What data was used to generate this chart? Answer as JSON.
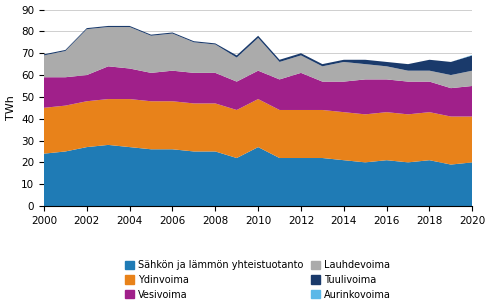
{
  "years": [
    2000,
    2001,
    2002,
    2003,
    2004,
    2005,
    2006,
    2007,
    2008,
    2009,
    2010,
    2011,
    2012,
    2013,
    2014,
    2015,
    2016,
    2017,
    2018,
    2019,
    2020
  ],
  "sahko_lampo": [
    24,
    25,
    27,
    28,
    27,
    26,
    26,
    25,
    25,
    22,
    27,
    22,
    22,
    22,
    21,
    20,
    21,
    20,
    21,
    19,
    20
  ],
  "ydinvoima": [
    21,
    21,
    21,
    21,
    22,
    22,
    22,
    22,
    22,
    22,
    22,
    22,
    22,
    22,
    22,
    22,
    22,
    22,
    22,
    22,
    21
  ],
  "vesivoima": [
    14,
    13,
    12,
    15,
    14,
    13,
    14,
    14,
    14,
    13,
    13,
    14,
    17,
    13,
    14,
    16,
    15,
    15,
    14,
    13,
    14
  ],
  "lauhdevoima": [
    10,
    12,
    21,
    18,
    19,
    17,
    17,
    14,
    13,
    11,
    15,
    8,
    8,
    7,
    9,
    7,
    6,
    5,
    5,
    6,
    7
  ],
  "tuulivoima": [
    0.5,
    0.5,
    0.5,
    0.5,
    0.5,
    0.5,
    0.5,
    0.5,
    0.5,
    1,
    1,
    1,
    1,
    1,
    1,
    2,
    2,
    3,
    5,
    6,
    7
  ],
  "aurinkovoima": [
    0,
    0,
    0,
    0,
    0,
    0,
    0,
    0,
    0,
    0,
    0,
    0,
    0,
    0,
    0,
    0,
    0,
    0,
    0,
    0,
    0.2
  ],
  "colors": {
    "sahko_lampo": "#1F7BB5",
    "ydinvoima": "#E8821A",
    "vesivoima": "#A0208A",
    "lauhdevoima": "#ABABAB",
    "tuulivoima": "#1A3A6B",
    "aurinkovoima": "#5BB8E8"
  },
  "labels": {
    "sahko_lampo": "Sähkön ja lämmön yhteistuotanto",
    "ydinvoima": "Ydinvoima",
    "vesivoima": "Vesivoima",
    "lauhdevoima": "Lauhdevoima",
    "tuulivoima": "Tuulivoima",
    "aurinkovoima": "Aurinkovoima"
  },
  "ylabel": "TWh",
  "ylim": [
    0,
    90
  ],
  "yticks": [
    0,
    10,
    20,
    30,
    40,
    50,
    60,
    70,
    80,
    90
  ],
  "xticks": [
    2000,
    2002,
    2004,
    2006,
    2008,
    2010,
    2012,
    2014,
    2016,
    2018,
    2020
  ],
  "grid_color": "#c8c8c8",
  "legend_order": [
    "sahko_lampo",
    "ydinvoima",
    "vesivoima",
    "lauhdevoima",
    "tuulivoima",
    "aurinkovoima"
  ]
}
